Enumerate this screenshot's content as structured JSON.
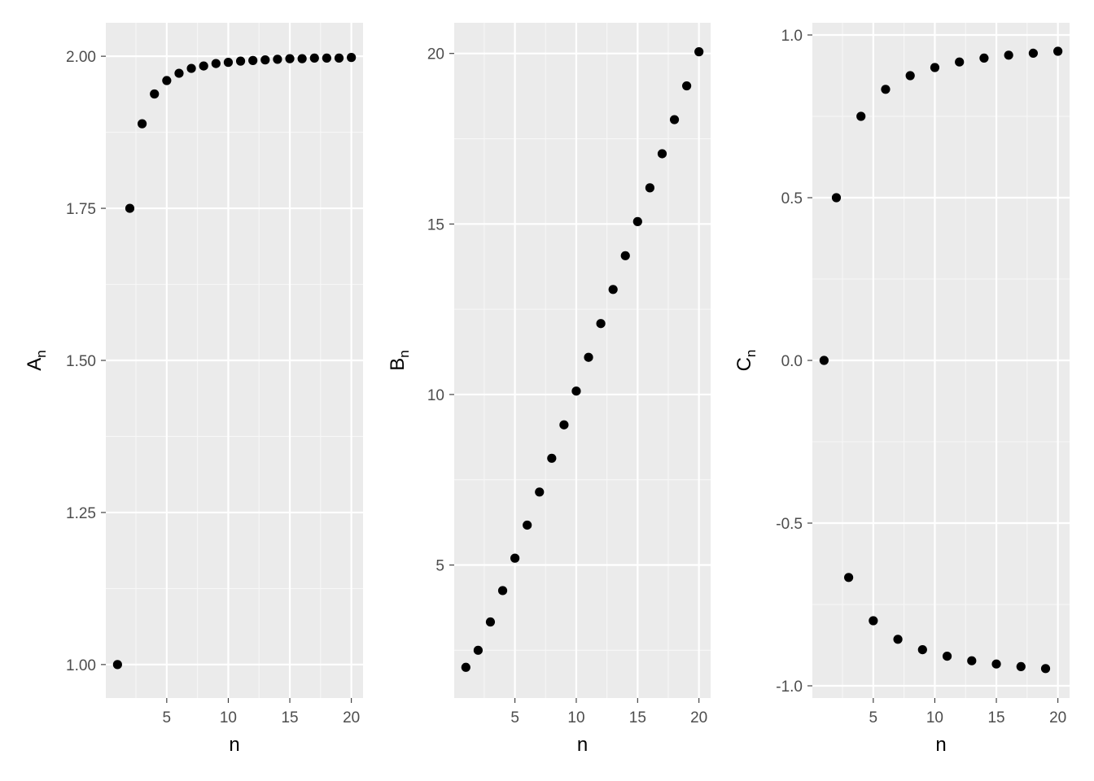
{
  "colors": {
    "panel_background": "#ebebeb",
    "grid_major": "#ffffff",
    "grid_minor": "#f7f7f7",
    "point": "#000000",
    "tick_text": "#4d4d4d",
    "title_text": "#000000"
  },
  "chart_data": [
    {
      "type": "scatter",
      "xlabel": "n",
      "ylabel": {
        "main": "A",
        "sub": "n"
      },
      "xlim": [
        0.05,
        20.95
      ],
      "ylim": [
        0.945,
        2.055
      ],
      "xticks": [
        5,
        10,
        15,
        20
      ],
      "xtick_labels": [
        "5",
        "10",
        "15",
        "20"
      ],
      "yticks": [
        1.0,
        1.25,
        1.5,
        1.75,
        2.0
      ],
      "ytick_labels": [
        "1.00",
        "1.25",
        "1.50",
        "1.75",
        "2.00"
      ],
      "grid": true,
      "x": [
        1,
        2,
        3,
        4,
        5,
        6,
        7,
        8,
        9,
        10,
        11,
        12,
        13,
        14,
        15,
        16,
        17,
        18,
        19,
        20
      ],
      "y": [
        1.0,
        1.75,
        1.889,
        1.938,
        1.96,
        1.972,
        1.98,
        1.984,
        1.988,
        1.99,
        1.992,
        1.993,
        1.994,
        1.995,
        1.996,
        1.996,
        1.997,
        1.997,
        1.997,
        1.998
      ]
    },
    {
      "type": "scatter",
      "xlabel": "n",
      "ylabel": {
        "main": "B",
        "sub": "n"
      },
      "xlim": [
        0.05,
        20.95
      ],
      "ylim": [
        1.1,
        20.9
      ],
      "xticks": [
        5,
        10,
        15,
        20
      ],
      "xtick_labels": [
        "5",
        "10",
        "15",
        "20"
      ],
      "yticks": [
        5,
        10,
        15,
        20
      ],
      "ytick_labels": [
        "5",
        "10",
        "15",
        "20"
      ],
      "grid": true,
      "x": [
        1,
        2,
        3,
        4,
        5,
        6,
        7,
        8,
        9,
        10,
        11,
        12,
        13,
        14,
        15,
        16,
        17,
        18,
        19,
        20
      ],
      "y": [
        2.0,
        2.5,
        3.33,
        4.25,
        5.2,
        6.17,
        7.14,
        8.13,
        9.11,
        10.1,
        11.09,
        12.08,
        13.08,
        14.07,
        15.07,
        16.06,
        17.06,
        18.06,
        19.05,
        20.05
      ]
    },
    {
      "type": "scatter",
      "xlabel": "n",
      "ylabel": {
        "main": "C",
        "sub": "n"
      },
      "xlim": [
        0.05,
        20.95
      ],
      "ylim": [
        -1.0375,
        1.0375
      ],
      "xticks": [
        5,
        10,
        15,
        20
      ],
      "xtick_labels": [
        "5",
        "10",
        "15",
        "20"
      ],
      "yticks": [
        -1.0,
        -0.5,
        0.0,
        0.5,
        1.0
      ],
      "ytick_labels": [
        "-1.0",
        "-0.5",
        "0.0",
        "0.5",
        "1.0"
      ],
      "grid": true,
      "x": [
        1,
        2,
        3,
        4,
        5,
        6,
        7,
        8,
        9,
        10,
        11,
        12,
        13,
        14,
        15,
        16,
        17,
        18,
        19,
        20
      ],
      "y": [
        0.0,
        0.5,
        -0.667,
        0.75,
        -0.8,
        0.833,
        -0.857,
        0.875,
        -0.889,
        0.9,
        -0.909,
        0.917,
        -0.923,
        0.929,
        -0.933,
        0.938,
        -0.941,
        0.944,
        -0.947,
        0.95
      ]
    }
  ]
}
